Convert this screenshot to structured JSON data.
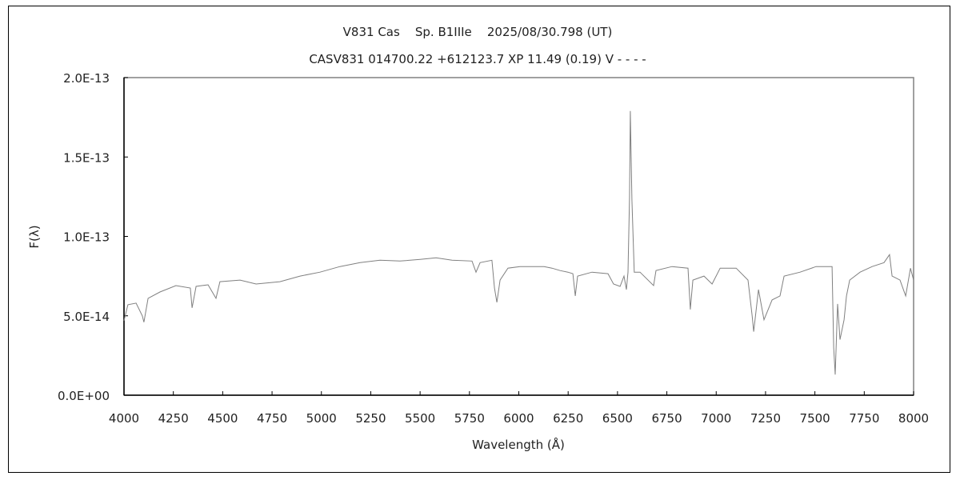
{
  "chart_data": {
    "type": "line",
    "title": "V831 Cas    Sp. B1IIIe    2025/08/30.798 (UT)",
    "subtitle": "CASV831 014700.22 +612123.7 XP 11.49 (0.19) V - - - -",
    "xlabel": "Wavelength (Å)",
    "ylabel": "F(λ)",
    "xlim": [
      4000,
      8000
    ],
    "ylim": [
      0,
      2e-13
    ],
    "x_ticks": [
      "4000",
      "4250",
      "4500",
      "4750",
      "5000",
      "5250",
      "5500",
      "5750",
      "6000",
      "6250",
      "6500",
      "6750",
      "7000",
      "7250",
      "7500",
      "7750",
      "8000"
    ],
    "y_ticks": [
      "0.0E+00",
      "5.0E-14",
      "1.0E-13",
      "1.5E-13",
      "2.0E-13"
    ],
    "grid": false,
    "line_color": "#808080",
    "series": [
      {
        "x": [
          4000,
          4020,
          4061,
          4093,
          4101,
          4122,
          4182,
          4263,
          4336,
          4345,
          4365,
          4426,
          4466,
          4486,
          4588,
          4669,
          4790,
          4892,
          4993,
          5094,
          5196,
          5297,
          5398,
          5500,
          5581,
          5662,
          5763,
          5783,
          5804,
          5864,
          5877,
          5889,
          5905,
          5945,
          6006,
          6128,
          6168,
          6209,
          6249,
          6274,
          6286,
          6298,
          6371,
          6452,
          6480,
          6513,
          6533,
          6545,
          6553,
          6561,
          6565,
          6573,
          6585,
          6614,
          6683,
          6695,
          6776,
          6857,
          6869,
          6882,
          6938,
          6979,
          7020,
          7101,
          7161,
          7182,
          7190,
          7214,
          7242,
          7283,
          7323,
          7344,
          7425,
          7506,
          7587,
          7595,
          7603,
          7615,
          7627,
          7648,
          7660,
          7676,
          7729,
          7790,
          7850,
          7878,
          7891,
          7931,
          7960,
          7984,
          8000
        ],
        "y": [
          4.7e-14,
          5.7e-14,
          5.8e-14,
          5e-14,
          4.6e-14,
          6.1e-14,
          6.5e-14,
          6.9e-14,
          6.75e-14,
          5.5e-14,
          6.85e-14,
          6.95e-14,
          6.1e-14,
          7.15e-14,
          7.25e-14,
          7e-14,
          7.15e-14,
          7.5e-14,
          7.75e-14,
          8.1e-14,
          8.35e-14,
          8.5e-14,
          8.45e-14,
          8.55e-14,
          8.65e-14,
          8.5e-14,
          8.45e-14,
          7.75e-14,
          8.35e-14,
          8.5e-14,
          6.75e-14,
          5.85e-14,
          7.25e-14,
          8e-14,
          8.1e-14,
          8.1e-14,
          8e-14,
          7.85e-14,
          7.75e-14,
          7.65e-14,
          6.25e-14,
          7.5e-14,
          7.75e-14,
          7.65e-14,
          7e-14,
          6.85e-14,
          7.5e-14,
          6.65e-14,
          7.75e-14,
          1.245e-13,
          1.79e-13,
          1.23e-13,
          7.75e-14,
          7.75e-14,
          6.9e-14,
          7.85e-14,
          8.1e-14,
          8e-14,
          5.4e-14,
          7.25e-14,
          7.5e-14,
          7e-14,
          8e-14,
          8e-14,
          7.25e-14,
          5e-14,
          4e-14,
          6.65e-14,
          4.75e-14,
          6e-14,
          6.25e-14,
          7.5e-14,
          7.75e-14,
          8.1e-14,
          8.1e-14,
          3e-14,
          1.3e-14,
          5.75e-14,
          3.5e-14,
          4.75e-14,
          6.25e-14,
          7.25e-14,
          7.75e-14,
          8.1e-14,
          8.35e-14,
          8.85e-14,
          7.5e-14,
          7.25e-14,
          6.25e-14,
          8e-14,
          7.25e-14
        ]
      }
    ]
  }
}
